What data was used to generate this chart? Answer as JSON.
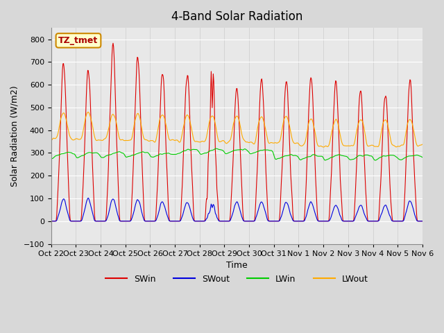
{
  "title": "4-Band Solar Radiation",
  "xlabel": "Time",
  "ylabel": "Solar Radiation (W/m2)",
  "ylim": [
    -100,
    850
  ],
  "yticks": [
    -100,
    0,
    100,
    200,
    300,
    400,
    500,
    600,
    700,
    800
  ],
  "x_labels": [
    "Oct 22",
    "Oct 23",
    "Oct 24",
    "Oct 25",
    "Oct 26",
    "Oct 27",
    "Oct 28",
    "Oct 29",
    "Oct 30",
    "Oct 31",
    "Nov 1",
    "Nov 2",
    "Nov 3",
    "Nov 4",
    "Nov 5",
    "Nov 6"
  ],
  "legend_labels": [
    "SWin",
    "SWout",
    "LWin",
    "LWout"
  ],
  "legend_colors": [
    "#dd0000",
    "#0000dd",
    "#00cc00",
    "#ffaa00"
  ],
  "annotation_text": "TZ_tmet",
  "annotation_bg": "#ffffcc",
  "annotation_border": "#cc8800",
  "annotation_text_color": "#aa0000",
  "n_days": 15,
  "SWin_peaks": [
    710,
    680,
    780,
    730,
    660,
    660,
    740,
    590,
    640,
    630,
    650,
    620,
    580,
    570,
    630
  ],
  "SWout_peaks": [
    105,
    105,
    105,
    100,
    90,
    90,
    90,
    90,
    90,
    90,
    90,
    75,
    75,
    75,
    95
  ],
  "LWin_base": 285,
  "LWout_base": 360,
  "title_fontsize": 12,
  "axis_fontsize": 9,
  "tick_fontsize": 8
}
